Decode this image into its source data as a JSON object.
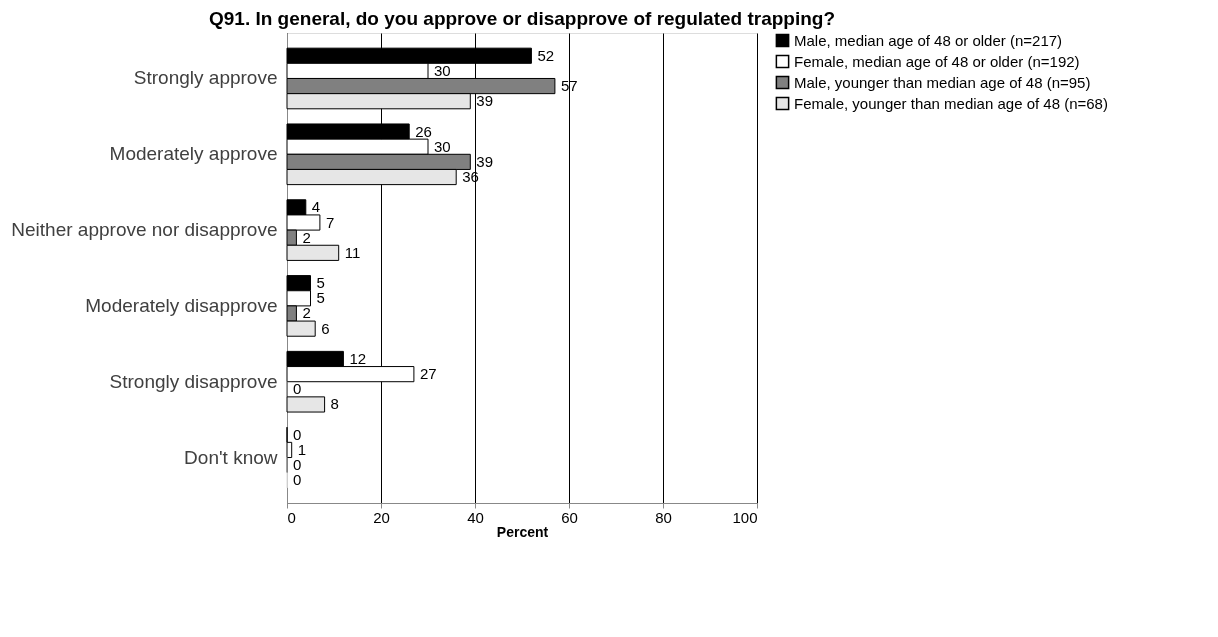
{
  "chart_data": {
    "type": "bar",
    "orientation": "horizontal",
    "title": "Q91. In general, do you approve or disapprove of regulated trapping?",
    "xlabel": "Percent",
    "categories": [
      "Strongly approve",
      "Moderately approve",
      "Neither approve nor disapprove",
      "Moderately disapprove",
      "Strongly disapprove",
      "Don't know"
    ],
    "series": [
      {
        "name": "Male, median age of 48 or older (n=217)",
        "color": "#000000",
        "values": [
          52,
          26,
          4,
          5,
          12,
          0
        ]
      },
      {
        "name": "Female, median age of 48 or older (n=192)",
        "color": "#ffffff",
        "values": [
          30,
          30,
          7,
          5,
          27,
          1
        ]
      },
      {
        "name": "Male, younger than median age of 48 (n=95)",
        "color": "#808080",
        "values": [
          57,
          39,
          2,
          2,
          0,
          0
        ]
      },
      {
        "name": "Female, younger than median age of 48 (n=68)",
        "color": "#e6e6e6",
        "values": [
          39,
          36,
          11,
          6,
          8,
          0
        ]
      }
    ],
    "xlim": [
      0,
      100
    ],
    "xticks": [
      0,
      20,
      40,
      60,
      80,
      100
    ],
    "grid": "x",
    "legend": "right",
    "data_labels": true
  }
}
